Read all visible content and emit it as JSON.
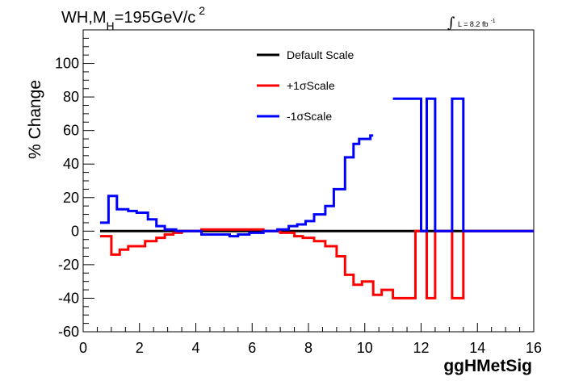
{
  "chart_data": {
    "type": "line",
    "title": {
      "prefix": "WH,M",
      "subscript": "H",
      "value": "=195GeV/c",
      "superscript": "2"
    },
    "lumi": {
      "integral_symbol": "∫",
      "text": "L = 8.2 fb",
      "superscript": "-1"
    },
    "xlabel": "ggHMetSig",
    "ylabel": "% Change",
    "xlim": [
      0,
      16
    ],
    "ylim": [
      -60,
      120
    ],
    "x_ticks": [
      0,
      2,
      4,
      6,
      8,
      10,
      12,
      14,
      16
    ],
    "y_ticks": [
      -60,
      -40,
      -20,
      0,
      20,
      40,
      60,
      80,
      100
    ],
    "legend_position": "top-center",
    "series": [
      {
        "name": "Default Scale",
        "color": "#000000",
        "style": "step",
        "x": [
          0.6,
          16
        ],
        "y": [
          0,
          0
        ]
      },
      {
        "name": "+1σScale",
        "color": "#ff0000",
        "style": "step",
        "x": [
          0.6,
          1.0,
          1.3,
          1.6,
          2.2,
          2.6,
          2.9,
          3.2,
          3.5,
          4.2,
          4.6,
          5.0,
          5.4,
          6.4,
          7.0,
          7.5,
          7.8,
          8.2,
          8.6,
          9.0,
          9.3,
          9.6,
          9.9,
          10.3,
          10.6,
          11.0,
          11.4,
          11.8,
          12.2,
          12.5,
          13.1,
          13.5,
          16.0
        ],
        "y": [
          -3,
          -14,
          -11,
          -9,
          -6,
          -4,
          -2,
          -1,
          0,
          1,
          1,
          1,
          1,
          0,
          -1,
          -3,
          -4,
          -6,
          -9,
          -15,
          -26,
          -32,
          -30,
          -38,
          -35,
          -40,
          -40,
          0,
          -40,
          0,
          -40,
          0,
          0
        ]
      },
      {
        "name": "-1σScale",
        "color": "#0000ff",
        "style": "step",
        "x": [
          0.6,
          0.9,
          1.2,
          1.6,
          1.9,
          2.3,
          2.6,
          2.9,
          3.3,
          3.7,
          4.2,
          4.6,
          5.2,
          5.5,
          5.9,
          6.4,
          6.9,
          7.3,
          7.6,
          7.9,
          8.2,
          8.6,
          8.9,
          9.3,
          9.6,
          9.8,
          10.2,
          10.3,
          11.0,
          11.4,
          11.8,
          12.0,
          12.2,
          12.5,
          13.1,
          13.5,
          16.0
        ],
        "y": [
          5,
          21,
          13,
          12,
          11,
          7,
          3,
          1,
          0,
          0,
          -2,
          -2,
          -3,
          -2,
          -1,
          0,
          1,
          3,
          4,
          6,
          10,
          15,
          25,
          44,
          52,
          55,
          57,
          null,
          79,
          79,
          79,
          0,
          79,
          0,
          79,
          0,
          0
        ]
      }
    ]
  }
}
